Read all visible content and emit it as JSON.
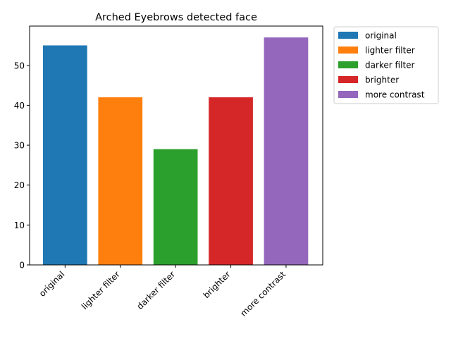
{
  "chart_data": {
    "type": "bar",
    "title": "Arched Eyebrows detected face",
    "xlabel": "",
    "ylabel": "",
    "categories": [
      "original",
      "lighter filter",
      "darker filter",
      "brighter",
      "more contrast"
    ],
    "values": [
      55,
      42,
      29,
      42,
      57
    ],
    "colors": [
      "#1f77b4",
      "#ff7f0e",
      "#2ca02c",
      "#d62728",
      "#9467bd"
    ],
    "ylim": [
      0,
      59.85
    ],
    "yticks": [
      0,
      10,
      20,
      30,
      40,
      50
    ],
    "grid": false,
    "legend": {
      "placement": "outside-top-right",
      "entries": [
        "original",
        "lighter filter",
        "darker filter",
        "brighter",
        "more contrast"
      ]
    }
  }
}
